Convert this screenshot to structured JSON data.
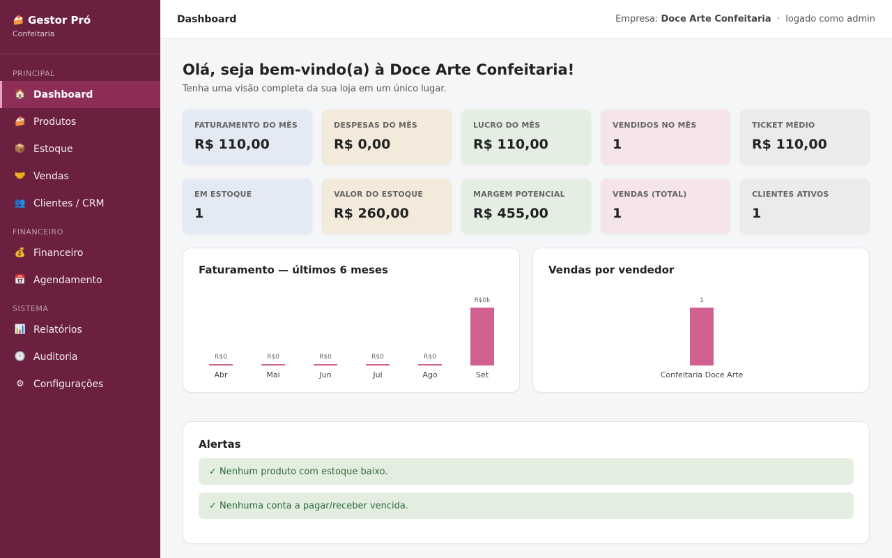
{
  "brand": {
    "icon": "cake-icon",
    "title": "Gestor Pró",
    "subtitle": "Confeitaria"
  },
  "sidebar": {
    "sections": [
      {
        "label": "PRINCIPAL"
      },
      {
        "label": "FINANCEIRO"
      },
      {
        "label": "SISTEMA"
      }
    ],
    "items": [
      {
        "label": "Dashboard",
        "icon": "home-icon",
        "glyph": "🏠",
        "active": true
      },
      {
        "label": "Produtos",
        "icon": "cake-icon",
        "glyph": "🍰"
      },
      {
        "label": "Estoque",
        "icon": "box-icon",
        "glyph": "📦"
      },
      {
        "label": "Vendas",
        "icon": "handshake-icon",
        "glyph": "🤝"
      },
      {
        "label": "Clientes / CRM",
        "icon": "people-icon",
        "glyph": "👥"
      },
      {
        "label": "Financeiro",
        "icon": "money-bag-icon",
        "glyph": "💰"
      },
      {
        "label": "Agendamento",
        "icon": "calendar-icon",
        "glyph": "📅"
      },
      {
        "label": "Relatórios",
        "icon": "chart-icon",
        "glyph": "📊"
      },
      {
        "label": "Auditoria",
        "icon": "clock-icon",
        "glyph": "🕒"
      },
      {
        "label": "Configurações",
        "icon": "gear-icon",
        "glyph": "⚙"
      }
    ]
  },
  "topbar": {
    "title": "Dashboard",
    "company_prefix": "Empresa:",
    "company": "Doce Arte Confeitaria",
    "separator": "·",
    "user": "logado como admin"
  },
  "main": {
    "welcome": "Olá, seja bem-vindo(a) à Doce Arte Confeitaria!",
    "welcome_sub": "Tenha uma visão completa da sua loja em um único lugar.",
    "stats": [
      {
        "label": "FATURAMENTO DO MÊS",
        "value": "R$ 110,00"
      },
      {
        "label": "DESPESAS DO MÊS",
        "value": "R$ 0,00"
      },
      {
        "label": "LUCRO DO MÊS",
        "value": "R$ 110,00"
      },
      {
        "label": "VENDIDOS NO MÊS",
        "value": "1"
      },
      {
        "label": "TICKET MÉDIO",
        "value": "R$ 110,00"
      },
      {
        "label": "EM ESTOQUE",
        "value": "1"
      },
      {
        "label": "VALOR DO ESTOQUE",
        "value": "R$ 260,00"
      },
      {
        "label": "MARGEM POTENCIAL",
        "value": "R$ 455,00"
      },
      {
        "label": "VENDAS (TOTAL)",
        "value": "1"
      },
      {
        "label": "CLIENTES ATIVOS",
        "value": "1"
      }
    ],
    "alerts_title": "Alertas",
    "alerts": [
      "✓ Nenhum produto com estoque baixo.",
      "✓ Nenhuma conta a pagar/receber vencida."
    ]
  },
  "colors": {
    "sidebar": "#6b2040",
    "active": "#8c2e58",
    "bar": "#d0608f"
  },
  "chart_data": [
    {
      "type": "bar",
      "title": "Faturamento — últimos 6 meses",
      "categories": [
        "Abr",
        "Mai",
        "Jun",
        "Jul",
        "Ago",
        "Set"
      ],
      "values": [
        0,
        0,
        0,
        0,
        0,
        110
      ],
      "data_labels": [
        "R$0",
        "R$0",
        "R$0",
        "R$0",
        "R$0",
        "R$0k"
      ],
      "ylim": [
        0,
        110
      ]
    },
    {
      "type": "bar",
      "title": "Vendas por vendedor",
      "categories": [
        "Confeitaria Doce Arte"
      ],
      "values": [
        1
      ],
      "data_labels": [
        "1"
      ],
      "ylim": [
        0,
        1
      ]
    }
  ]
}
